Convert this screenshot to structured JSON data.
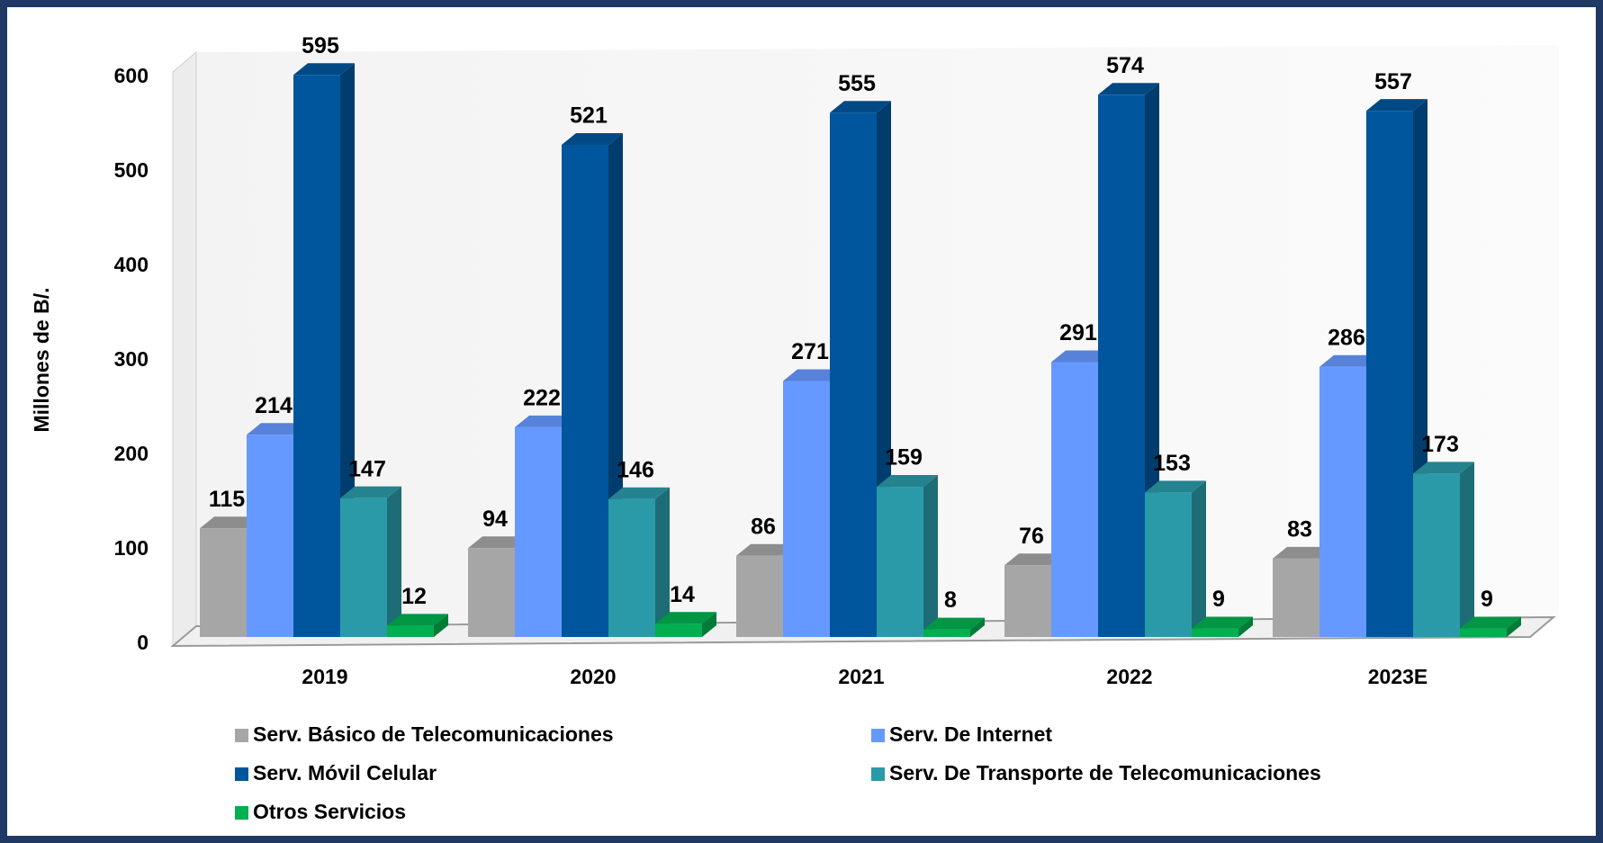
{
  "chart_data": {
    "type": "bar3d",
    "y_label": "Millones de B/.",
    "categories": [
      "2019",
      "2020",
      "2021",
      "2022",
      "2023E"
    ],
    "series": [
      {
        "name": "Serv. Básico de Telecomunicaciones",
        "color": "#a6a6a6",
        "values": [
          115,
          94,
          86,
          76,
          83
        ]
      },
      {
        "name": "Serv. De Internet",
        "color": "#6699ff",
        "values": [
          214,
          222,
          271,
          291,
          286
        ]
      },
      {
        "name": "Serv. Móvil Celular",
        "color": "#00569c",
        "values": [
          595,
          521,
          555,
          574,
          557
        ]
      },
      {
        "name": "Serv. De Transporte de Telecomunicaciones",
        "color": "#2a9aa8",
        "values": [
          147,
          146,
          159,
          153,
          173
        ]
      },
      {
        "name": "Otros Servicios",
        "color": "#00b050",
        "values": [
          12,
          14,
          8,
          9,
          9
        ]
      }
    ],
    "ylim": [
      0,
      600
    ],
    "yticks": [
      0,
      100,
      200,
      300,
      400,
      500,
      600
    ],
    "grid": false
  }
}
